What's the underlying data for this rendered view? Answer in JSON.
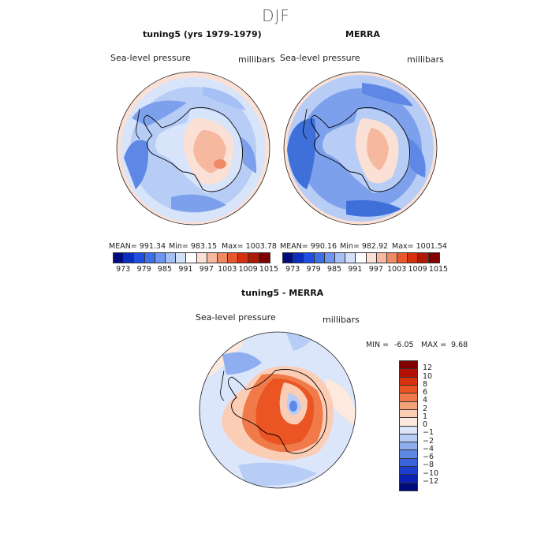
{
  "season": "DJF",
  "panels": {
    "model": {
      "title": "tuning5 (yrs 1979-1979)",
      "variable": "Sea-level pressure",
      "units": "millibars",
      "stats": {
        "mean": "MEAN= 991.34",
        "min": "Min= 983.15",
        "max": "Max= 1003.78"
      }
    },
    "obs": {
      "title": "MERRA",
      "variable": "Sea-level pressure",
      "units": "millibars",
      "stats": {
        "mean": "MEAN= 990.16",
        "min": "Min= 982.92",
        "max": "Max= 1001.54"
      }
    },
    "diff": {
      "title": "tuning5 - MERRA",
      "variable": "Sea-level pressure",
      "units": "millibars",
      "stats": {
        "min_label": "MIN =",
        "min": "-6.05",
        "max_label": "MAX =",
        "max": "9.68"
      }
    }
  },
  "abs_colorbar": {
    "colors": [
      "#000b7e",
      "#0a2fbf",
      "#1e4fe0",
      "#3d6fe8",
      "#6f95ef",
      "#a6bff5",
      "#d3e0fa",
      "#ffffff",
      "#fbe0d6",
      "#f6b9a0",
      "#f08a64",
      "#e8582d",
      "#d6300f",
      "#ad1a06",
      "#800000"
    ],
    "labels": [
      "973",
      "979",
      "985",
      "991",
      "997",
      "1003",
      "1009",
      "1015"
    ]
  },
  "diff_colorbar": {
    "colors": [
      "#800000",
      "#b31106",
      "#d9310d",
      "#ea5523",
      "#f07a4a",
      "#f5a27a",
      "#fbcdb5",
      "#fde9dd",
      "#dbe6fb",
      "#b8cdf5",
      "#8eaeef",
      "#5f87e6",
      "#3a62dc",
      "#1d3fd0",
      "#0a20b4",
      "#000b7e"
    ],
    "labels": [
      "12",
      "10",
      "8",
      "6",
      "4",
      "2",
      "1",
      "0",
      "−1",
      "−2",
      "−4",
      "−6",
      "−8",
      "−10",
      "−12"
    ]
  },
  "map_colors": {
    "ocean_deep": "#3f6fd8",
    "ocean_mid": "#7da0ec",
    "ocean_light": "#b7cdf6",
    "ocean_pale": "#d8e4fa",
    "warm_pale": "#fbe0d6",
    "warm": "#f4b094",
    "hot": "#e8673a",
    "coast": "#000000"
  },
  "map_icons": [
    "antarctica-coastline",
    "south-america-tip"
  ]
}
